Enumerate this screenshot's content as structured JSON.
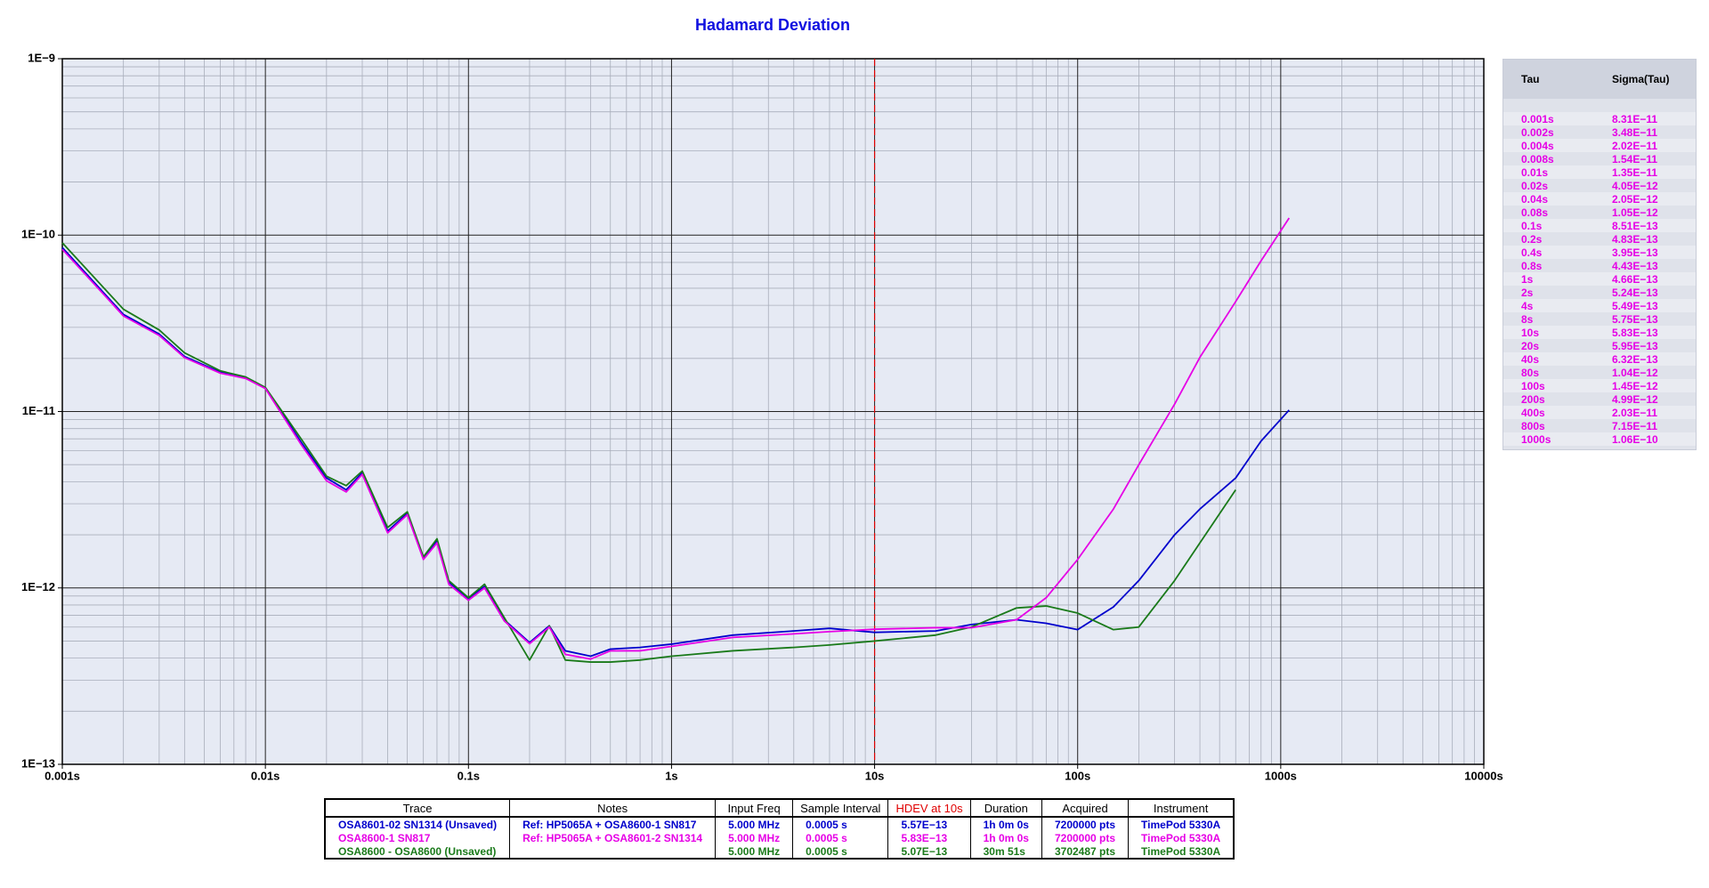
{
  "chart_data": {
    "type": "line",
    "title": "Hadamard Deviation",
    "log_x": true,
    "log_y": true,
    "grid": true,
    "minor_grid": true,
    "xlim": [
      0.001,
      10000
    ],
    "ylim": [
      1e-13,
      1e-09
    ],
    "xticks": [
      {
        "value": 0.001,
        "label": "0.001s"
      },
      {
        "value": 0.01,
        "label": "0.01s"
      },
      {
        "value": 0.1,
        "label": "0.1s"
      },
      {
        "value": 1,
        "label": "1s"
      },
      {
        "value": 10,
        "label": "10s"
      },
      {
        "value": 100,
        "label": "100s"
      },
      {
        "value": 1000,
        "label": "1000s"
      },
      {
        "value": 10000,
        "label": "10000s"
      }
    ],
    "yticks": [
      {
        "value": 1e-13,
        "label": "1E−13"
      },
      {
        "value": 1e-12,
        "label": "1E−12"
      },
      {
        "value": 1e-11,
        "label": "1E−11"
      },
      {
        "value": 1e-10,
        "label": "1E−10"
      },
      {
        "value": 1e-09,
        "label": "1E−9"
      }
    ],
    "marker": {
      "x": 10,
      "color": "#e00000"
    },
    "x": [
      0.001,
      0.002,
      0.003,
      0.004,
      0.006,
      0.008,
      0.01,
      0.015,
      0.02,
      0.025,
      0.03,
      0.04,
      0.05,
      0.06,
      0.07,
      0.08,
      0.1,
      0.12,
      0.15,
      0.2,
      0.25,
      0.3,
      0.4,
      0.5,
      0.7,
      1,
      2,
      4,
      6,
      10,
      20,
      30,
      50,
      70,
      100,
      150,
      200,
      300,
      400,
      600,
      800,
      1100
    ],
    "series": [
      {
        "name": "OSA8601-02 SN1314 (Unsaved)",
        "color": "#0000cc",
        "values": [
          8.5e-11,
          3.55e-11,
          2.75e-11,
          2.05e-11,
          1.67e-11,
          1.55e-11,
          1.36e-11,
          6.7e-12,
          4.2e-12,
          3.6e-12,
          4.5e-12,
          2.1e-12,
          2.65e-12,
          1.47e-12,
          1.85e-12,
          1.08e-12,
          8.7e-13,
          1.02e-12,
          6.6e-13,
          4.9e-13,
          6.1e-13,
          4.4e-13,
          4.1e-13,
          4.5e-13,
          4.6e-13,
          4.8e-13,
          5.4e-13,
          5.7e-13,
          5.9e-13,
          5.6e-13,
          5.7e-13,
          6.2e-13,
          6.6e-13,
          6.3e-13,
          5.8e-13,
          7.8e-13,
          1.1e-12,
          2e-12,
          2.8e-12,
          4.2e-12,
          6.8e-12,
          1.02e-11
        ]
      },
      {
        "name": "OSA8600-1 SN817",
        "color": "#e600e6",
        "values": [
          8.31e-11,
          3.48e-11,
          2.7e-11,
          2.02e-11,
          1.65e-11,
          1.54e-11,
          1.35e-11,
          6.5e-12,
          4.05e-12,
          3.5e-12,
          4.4e-12,
          2.05e-12,
          2.6e-12,
          1.45e-12,
          1.8e-12,
          1.05e-12,
          8.51e-13,
          1e-12,
          6.5e-13,
          4.83e-13,
          6e-13,
          4.2e-13,
          3.95e-13,
          4.4e-13,
          4.4e-13,
          4.66e-13,
          5.24e-13,
          5.49e-13,
          5.65e-13,
          5.83e-13,
          5.95e-13,
          5.95e-13,
          6.6e-13,
          8.8e-13,
          1.45e-12,
          2.8e-12,
          4.99e-12,
          1.1e-11,
          2.03e-11,
          4.2e-11,
          7.15e-11,
          1.25e-10
        ]
      },
      {
        "name": "OSA8600 - OSA8600 (Unsaved)",
        "color": "#1a7a1a",
        "values": [
          9.05e-11,
          3.8e-11,
          2.9e-11,
          2.15e-11,
          1.7e-11,
          1.57e-11,
          1.37e-11,
          7e-12,
          4.3e-12,
          3.8e-12,
          4.6e-12,
          2.2e-12,
          2.7e-12,
          1.5e-12,
          1.9e-12,
          1.1e-12,
          8.8e-13,
          1.05e-12,
          6.8e-13,
          3.9e-13,
          6.1e-13,
          3.9e-13,
          3.8e-13,
          3.8e-13,
          3.9e-13,
          4.1e-13,
          4.4e-13,
          4.6e-13,
          4.75e-13,
          5e-13,
          5.4e-13,
          6e-13,
          7.7e-13,
          7.9e-13,
          7.2e-13,
          5.8e-13,
          6e-13,
          1.1e-12,
          1.8e-12,
          3.6e-12,
          null,
          null
        ]
      }
    ]
  },
  "tau_table": {
    "header": [
      "Tau",
      "Sigma(Tau)"
    ],
    "rows": [
      [
        "0.001s",
        "8.31E−11"
      ],
      [
        "0.002s",
        "3.48E−11"
      ],
      [
        "0.004s",
        "2.02E−11"
      ],
      [
        "0.008s",
        "1.54E−11"
      ],
      [
        "0.01s",
        "1.35E−11"
      ],
      [
        "0.02s",
        "4.05E−12"
      ],
      [
        "0.04s",
        "2.05E−12"
      ],
      [
        "0.08s",
        "1.05E−12"
      ],
      [
        "0.1s",
        "8.51E−13"
      ],
      [
        "0.2s",
        "4.83E−13"
      ],
      [
        "0.4s",
        "3.95E−13"
      ],
      [
        "0.8s",
        "4.43E−13"
      ],
      [
        "1s",
        "4.66E−13"
      ],
      [
        "2s",
        "5.24E−13"
      ],
      [
        "4s",
        "5.49E−13"
      ],
      [
        "8s",
        "5.75E−13"
      ],
      [
        "10s",
        "5.83E−13"
      ],
      [
        "20s",
        "5.95E−13"
      ],
      [
        "40s",
        "6.32E−13"
      ],
      [
        "80s",
        "1.04E−12"
      ],
      [
        "100s",
        "1.45E−12"
      ],
      [
        "200s",
        "4.99E−12"
      ],
      [
        "400s",
        "2.03E−11"
      ],
      [
        "800s",
        "7.15E−11"
      ],
      [
        "1000s",
        "1.06E−10"
      ]
    ]
  },
  "trace_table": {
    "header": [
      "Trace",
      "Notes",
      "Input Freq",
      "Sample Interval",
      "HDEV at 10s",
      "Duration",
      "Acquired",
      "Instrument"
    ],
    "rows": [
      {
        "color": "#0000cc",
        "cells": [
          "OSA8601-02 SN1314 (Unsaved)",
          "Ref: HP5065A + OSA8600-1 SN817",
          "5.000 MHz",
          "0.0005 s",
          "5.57E−13",
          "1h 0m 0s",
          "7200000 pts",
          "TimePod 5330A"
        ]
      },
      {
        "color": "#e600e6",
        "cells": [
          "OSA8600-1 SN817",
          "Ref: HP5065A + OSA8601-2 SN1314",
          "5.000 MHz",
          "0.0005 s",
          "5.83E−13",
          "1h 0m 0s",
          "7200000 pts",
          "TimePod 5330A"
        ]
      },
      {
        "color": "#1a7a1a",
        "cells": [
          "OSA8600 - OSA8600 (Unsaved)",
          "",
          "5.000 MHz",
          "0.0005 s",
          "5.07E−13",
          "30m 51s",
          "3702487 pts",
          "TimePod 5330A"
        ]
      }
    ]
  }
}
